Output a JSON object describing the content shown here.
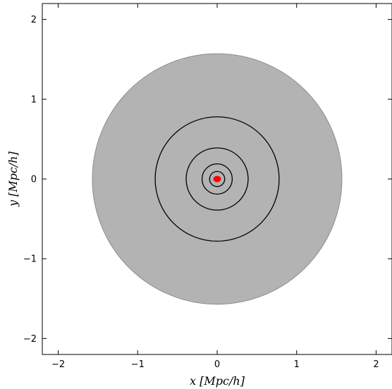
{
  "chart_data": {
    "type": "scatter",
    "title": "",
    "xlabel": "x [Mpc/h]",
    "ylabel": "y [Mpc/h]",
    "xlim": [
      -2.2,
      2.2
    ],
    "ylim": [
      -2.2,
      2.2
    ],
    "xticks": [
      -2,
      -1,
      0,
      1,
      2
    ],
    "yticks": [
      -2,
      -1,
      0,
      1,
      2
    ],
    "xtick_labels": [
      "−2",
      "−1",
      "0",
      "1",
      "2"
    ],
    "ytick_labels": [
      "−2",
      "−1",
      "0",
      "1",
      "2"
    ],
    "grid": false,
    "filled_region": {
      "shape": "circle",
      "center": [
        0,
        0
      ],
      "radius": 1.57,
      "color": "#b3b3b3"
    },
    "circles": [
      {
        "center": [
          0,
          0
        ],
        "radius": 0.78,
        "color": "#000000"
      },
      {
        "center": [
          0,
          0
        ],
        "radius": 0.39,
        "color": "#000000"
      },
      {
        "center": [
          0,
          0
        ],
        "radius": 0.19,
        "color": "#000000"
      },
      {
        "center": [
          0,
          0
        ],
        "radius": 0.095,
        "color": "#000000"
      }
    ],
    "points": [
      {
        "x": 0,
        "y": 0,
        "color": "#ff0000"
      }
    ]
  }
}
